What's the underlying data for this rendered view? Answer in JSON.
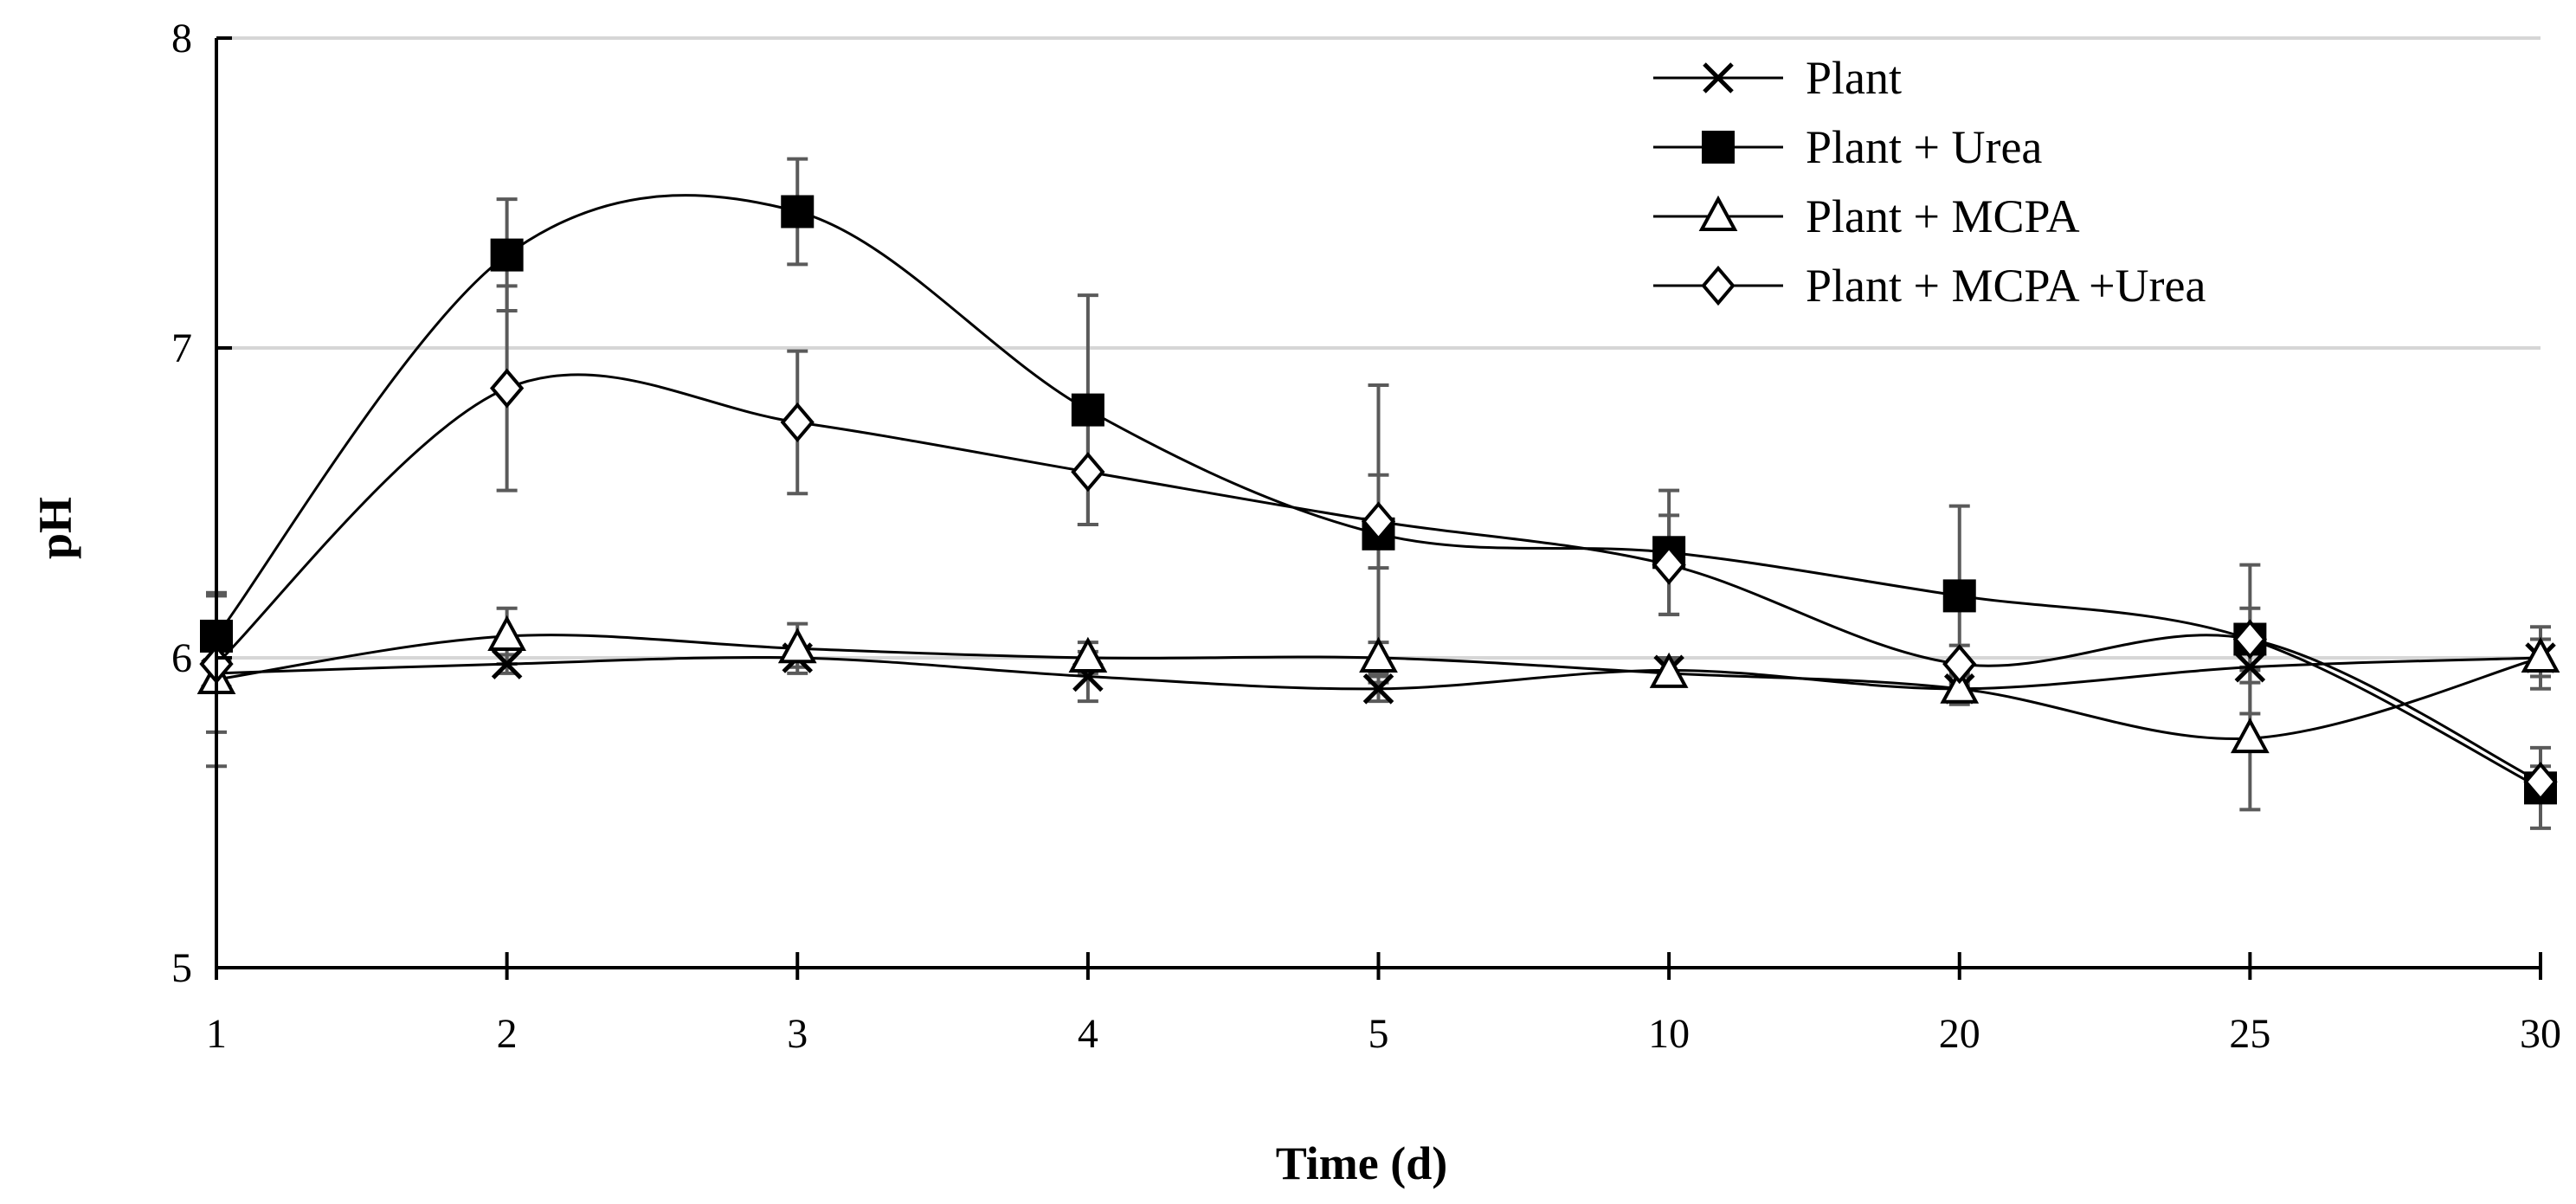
{
  "chart_data": {
    "type": "line",
    "title": "",
    "xlabel": "Time (d)",
    "ylabel": "pH",
    "categories": [
      "1",
      "2",
      "3",
      "4",
      "5",
      "10",
      "20",
      "25",
      "30"
    ],
    "ylim": [
      5,
      8
    ],
    "yticks": [
      5,
      6,
      7,
      8
    ],
    "grid": true,
    "legend_position": "top-right",
    "series": [
      {
        "name": "Plant",
        "marker": "x",
        "values": [
          5.95,
          5.98,
          6.0,
          5.94,
          5.9,
          5.96,
          5.9,
          5.97,
          6.0
        ],
        "errors": [
          0.04,
          0.03,
          0.03,
          0.08,
          0.04,
          0.04,
          0.04,
          0.05,
          0.1
        ]
      },
      {
        "name": "Plant + Urea",
        "marker": "square-filled",
        "values": [
          6.07,
          7.3,
          7.44,
          6.8,
          6.4,
          6.34,
          6.2,
          6.06,
          5.58
        ],
        "errors": [
          0.14,
          0.18,
          0.17,
          0.37,
          0.48,
          0.2,
          0.29,
          0.24,
          0.13
        ]
      },
      {
        "name": "Plant + MCPA",
        "marker": "triangle-open",
        "values": [
          5.93,
          6.07,
          6.03,
          6.0,
          6.0,
          5.95,
          5.9,
          5.74,
          6.0
        ],
        "errors": [
          0.28,
          0.09,
          0.08,
          0.05,
          0.05,
          0.04,
          0.05,
          0.23,
          0.06
        ]
      },
      {
        "name": "Plant + MCPA  +Urea",
        "marker": "diamond-open",
        "values": [
          5.98,
          6.87,
          6.76,
          6.6,
          6.44,
          6.3,
          5.98,
          6.06,
          5.6
        ],
        "errors": [
          0.22,
          0.33,
          0.23,
          0.17,
          0.15,
          0.16,
          0.06,
          0.1,
          0.05
        ]
      }
    ]
  }
}
